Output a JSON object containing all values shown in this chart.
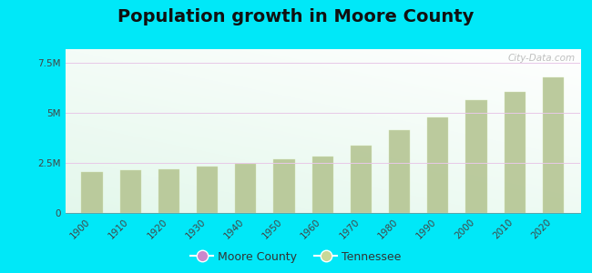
{
  "title": "Population growth in Moore County",
  "years": [
    1900,
    1910,
    1920,
    1930,
    1940,
    1950,
    1960,
    1970,
    1980,
    1990,
    2000,
    2010,
    2020
  ],
  "tennessee_values": [
    2050000,
    2150000,
    2180000,
    2320000,
    2460000,
    2700000,
    2820000,
    3350000,
    4150000,
    4800000,
    5650000,
    6050000,
    6780000
  ],
  "yticks": [
    0,
    2500000,
    5000000,
    7500000
  ],
  "ytick_labels": [
    "0",
    "2.5M",
    "5M",
    "7.5M"
  ],
  "ylim": [
    0,
    8200000
  ],
  "background_outer": "#00e8f8",
  "bar_color": "#b8c898",
  "bar_edge_color": "#c8d8a8",
  "legend_moore_color": "#cc88cc",
  "legend_tennessee_color": "#c8d898",
  "watermark": "City-Data.com",
  "title_fontsize": 14,
  "grid_color": "#ddbbdd",
  "chart_bg_top": "#ffffff",
  "chart_bg_bottom": "#c8f0d8"
}
